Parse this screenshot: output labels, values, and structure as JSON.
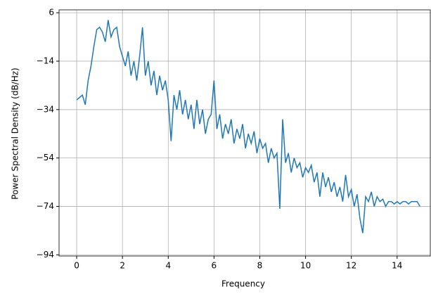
{
  "chart_data": {
    "type": "line",
    "xlabel": "Frequency",
    "ylabel": "Power Spectral Density (dB/Hz)",
    "x": [
      0,
      0.125,
      0.25,
      0.375,
      0.5,
      0.625,
      0.75,
      0.875,
      1,
      1.125,
      1.25,
      1.375,
      1.5,
      1.625,
      1.75,
      1.875,
      2,
      2.125,
      2.25,
      2.375,
      2.5,
      2.625,
      2.75,
      2.875,
      3,
      3.125,
      3.25,
      3.375,
      3.5,
      3.625,
      3.75,
      3.875,
      4,
      4.125,
      4.25,
      4.375,
      4.5,
      4.625,
      4.75,
      4.875,
      5,
      5.125,
      5.25,
      5.375,
      5.5,
      5.625,
      5.75,
      5.875,
      6,
      6.125,
      6.25,
      6.375,
      6.5,
      6.625,
      6.75,
      6.875,
      7,
      7.125,
      7.25,
      7.375,
      7.5,
      7.625,
      7.75,
      7.875,
      8,
      8.125,
      8.25,
      8.375,
      8.5,
      8.625,
      8.75,
      8.875,
      9,
      9.125,
      9.25,
      9.375,
      9.5,
      9.625,
      9.75,
      9.875,
      10,
      10.125,
      10.25,
      10.375,
      10.5,
      10.625,
      10.75,
      10.875,
      11,
      11.125,
      11.25,
      11.375,
      11.5,
      11.625,
      11.75,
      11.875,
      12,
      12.125,
      12.25,
      12.375,
      12.5,
      12.625,
      12.75,
      12.875,
      13,
      13.125,
      13.25,
      13.375,
      13.5,
      13.625,
      13.75,
      13.875,
      14,
      14.125,
      14.25,
      14.375,
      14.5,
      14.625,
      14.75,
      14.875,
      15
    ],
    "series": [
      {
        "color": "#1f77b4",
        "values": [
          -30,
          -29,
          -28,
          -32,
          -22,
          -16,
          -8,
          -1,
          0,
          -2,
          -6,
          3,
          -4,
          -1,
          0,
          -8,
          -12,
          -16,
          -10,
          -20,
          -14,
          -22,
          -12,
          0,
          -20,
          -14,
          -24,
          -18,
          -28,
          -20,
          -26,
          -22,
          -30,
          -47,
          -28,
          -34,
          -26,
          -36,
          -30,
          -38,
          -32,
          -42,
          -30,
          -40,
          -34,
          -44,
          -38,
          -36,
          -22,
          -42,
          -36,
          -46,
          -40,
          -44,
          -38,
          -48,
          -42,
          -46,
          -40,
          -50,
          -44,
          -48,
          -43,
          -52,
          -46,
          -50,
          -48,
          -56,
          -50,
          -54,
          -52,
          -75,
          -38,
          -56,
          -52,
          -60,
          -54,
          -58,
          -56,
          -62,
          -58,
          -60,
          -57,
          -64,
          -60,
          -70,
          -60,
          -66,
          -62,
          -68,
          -64,
          -70,
          -66,
          -72,
          -61,
          -70,
          -67,
          -74,
          -69,
          -79,
          -85,
          -70,
          -72,
          -68,
          -74,
          -70,
          -72,
          -71,
          -74,
          -72,
          -72,
          -73,
          -72,
          -73,
          -72,
          -72,
          -73,
          -72,
          -72,
          -72,
          -74
        ]
      }
    ],
    "xlim": [
      -0.77,
      15.45
    ],
    "ylim": [
      -94.5,
      7.2
    ],
    "xticks": [
      0,
      2,
      4,
      6,
      8,
      10,
      12,
      14
    ],
    "yticks": [
      {
        "value": -94,
        "label": "−94"
      },
      {
        "value": -74,
        "label": "−74"
      },
      {
        "value": -54,
        "label": "−54"
      },
      {
        "value": -34,
        "label": "−34"
      },
      {
        "value": -14,
        "label": "−14"
      },
      6
    ],
    "grid": true
  }
}
